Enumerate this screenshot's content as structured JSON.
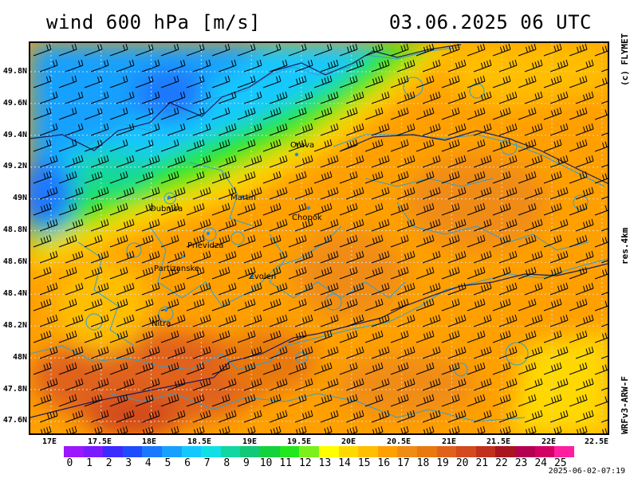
{
  "header": {
    "title": "wind 600 hPa [m/s]",
    "date_time": "03.06.2025   06 UTC"
  },
  "side": {
    "copyright": "(c) FLYMET",
    "resolution": "res.4km",
    "model": "WRFv3-ARW-F"
  },
  "axes": {
    "lat_labels": [
      "49.8N",
      "49.6N",
      "49.4N",
      "49.2N",
      "49N",
      "48.8N",
      "48.6N",
      "48.4N",
      "48.2N",
      "48N",
      "47.8N",
      "47.6N"
    ],
    "lon_labels": [
      "17E",
      "17.5E",
      "18E",
      "18.5E",
      "19E",
      "19.5E",
      "20E",
      "20.5E",
      "21E",
      "21.5E",
      "22E",
      "22.5E"
    ]
  },
  "cities": [
    {
      "name": "Orava"
    },
    {
      "name": "Martin"
    },
    {
      "name": "Dubnica"
    },
    {
      "name": "Chopok"
    },
    {
      "name": "Prievidza"
    },
    {
      "name": "Partizanske"
    },
    {
      "name": "Zvolen"
    },
    {
      "name": "Nitra"
    }
  ],
  "colorbar": {
    "labels": [
      "0",
      "1",
      "2",
      "3",
      "4",
      "5",
      "6",
      "7",
      "8",
      "9",
      "10",
      "11",
      "12",
      "13",
      "14",
      "15",
      "16",
      "17",
      "18",
      "19",
      "20",
      "21",
      "22",
      "23",
      "24",
      "25"
    ],
    "colors": [
      "#9b17ff",
      "#7a1bff",
      "#3a2bff",
      "#1f4bff",
      "#1a78ff",
      "#19a0ff",
      "#14c8ff",
      "#10e0e6",
      "#13d7a0",
      "#13c878",
      "#13d23c",
      "#22e61e",
      "#7cf01a",
      "#ffff00",
      "#ffd800",
      "#ffbe00",
      "#ffa000",
      "#f08c14",
      "#e8780f",
      "#e0621a",
      "#d24a1e",
      "#c0301e",
      "#aa141e",
      "#b40050",
      "#d20064",
      "#ff1ea0"
    ]
  },
  "timestamp": "2025-06-02-07:19"
}
